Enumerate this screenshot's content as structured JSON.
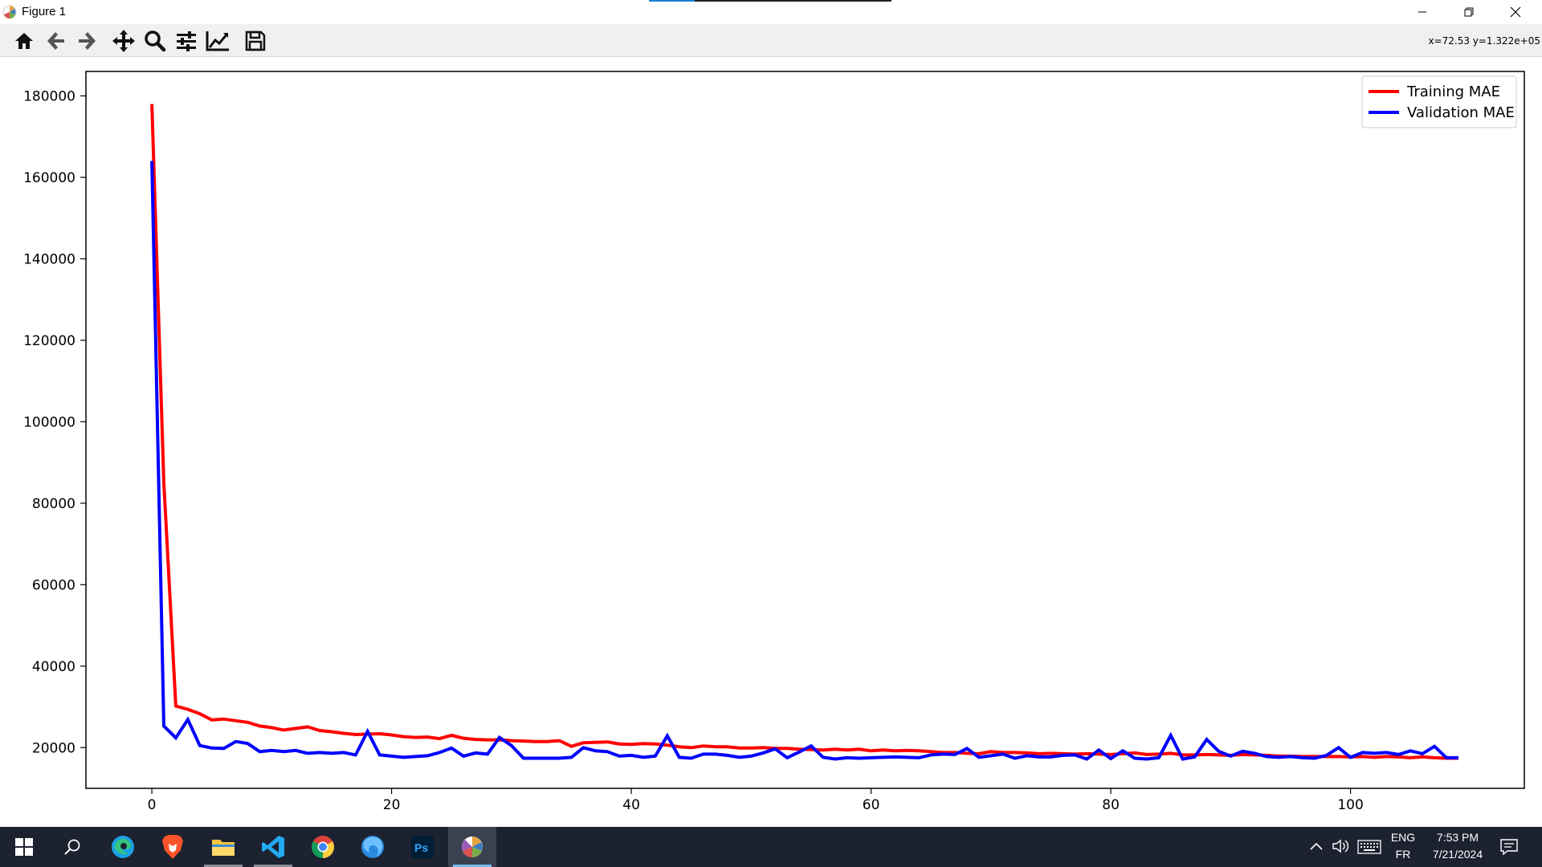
{
  "window": {
    "title": "Figure 1",
    "controls": {
      "minimize_icon": "minimize-icon",
      "restore_icon": "restore-icon",
      "close_icon": "close-icon"
    },
    "top_progress_fraction": 0.19
  },
  "toolbar": {
    "buttons": [
      {
        "name": "home-button",
        "icon": "home-icon"
      },
      {
        "name": "back-button",
        "icon": "arrow-left-icon"
      },
      {
        "name": "forward-button",
        "icon": "arrow-right-icon"
      },
      {
        "name": "pan-button",
        "icon": "move-icon"
      },
      {
        "name": "zoom-button",
        "icon": "magnifier-icon"
      },
      {
        "name": "configure-subplots-button",
        "icon": "sliders-icon"
      },
      {
        "name": "edit-axis-button",
        "icon": "line-chart-icon"
      },
      {
        "name": "save-button",
        "icon": "floppy-disk-icon"
      }
    ],
    "coordinate_readout": "x=72.53 y=1.322e+05"
  },
  "chart_data": {
    "type": "line",
    "title": "",
    "xlabel": "",
    "ylabel": "",
    "xlim": [
      -5.5,
      114.5
    ],
    "ylim": [
      10000,
      186000
    ],
    "xticks": [
      0,
      20,
      40,
      60,
      80,
      100
    ],
    "xtick_labels": [
      "0",
      "20",
      "40",
      "60",
      "80",
      "100"
    ],
    "yticks": [
      20000,
      40000,
      60000,
      80000,
      100000,
      120000,
      140000,
      160000,
      180000
    ],
    "ytick_labels": [
      "20000",
      "40000",
      "60000",
      "80000",
      "100000",
      "120000",
      "140000",
      "160000",
      "180000"
    ],
    "grid": false,
    "legend_position": "top-right",
    "x": [
      0,
      1,
      2,
      3,
      4,
      5,
      6,
      7,
      8,
      9,
      10,
      11,
      12,
      13,
      14,
      15,
      16,
      17,
      18,
      19,
      20,
      21,
      22,
      23,
      24,
      25,
      26,
      27,
      28,
      29,
      30,
      31,
      32,
      33,
      34,
      35,
      36,
      37,
      38,
      39,
      40,
      41,
      42,
      43,
      44,
      45,
      46,
      47,
      48,
      49,
      50,
      51,
      52,
      53,
      54,
      55,
      56,
      57,
      58,
      59,
      60,
      61,
      62,
      63,
      64,
      65,
      66,
      67,
      68,
      69,
      70,
      71,
      72,
      73,
      74,
      75,
      76,
      77,
      78,
      79,
      80,
      81,
      82,
      83,
      84,
      85,
      86,
      87,
      88,
      89,
      90,
      91,
      92,
      93,
      94,
      95,
      96,
      97,
      98,
      99,
      100,
      101,
      102,
      103,
      104,
      105,
      106,
      107,
      108,
      109
    ],
    "series": [
      {
        "name": "Training MAE",
        "color": "#ff0000",
        "values": [
          178000,
          85000,
          30200,
          29400,
          28300,
          26800,
          27000,
          26600,
          26200,
          25300,
          24900,
          24300,
          24700,
          25100,
          24200,
          23900,
          23500,
          23200,
          23300,
          23400,
          23100,
          22700,
          22500,
          22600,
          22200,
          23000,
          22300,
          22000,
          21900,
          21900,
          21700,
          21600,
          21500,
          21500,
          21700,
          20300,
          21200,
          21300,
          21400,
          20900,
          20800,
          21000,
          20900,
          20600,
          20200,
          20000,
          20400,
          20200,
          20200,
          19900,
          19900,
          20000,
          19800,
          19800,
          19600,
          19500,
          19400,
          19600,
          19400,
          19600,
          19200,
          19400,
          19200,
          19300,
          19200,
          19000,
          18800,
          18800,
          18600,
          18500,
          19000,
          18800,
          18800,
          18700,
          18500,
          18600,
          18500,
          18400,
          18500,
          18400,
          18300,
          18500,
          18700,
          18300,
          18400,
          18600,
          18200,
          18200,
          18300,
          18200,
          18100,
          18300,
          18200,
          18100,
          17900,
          17900,
          17800,
          17800,
          17800,
          17800,
          17700,
          17800,
          17600,
          17800,
          17700,
          17500,
          17700,
          17500,
          17400,
          17400
        ],
        "linewidth": 4
      },
      {
        "name": "Validation MAE",
        "color": "#0000ff",
        "values": [
          164000,
          25300,
          22400,
          26900,
          20500,
          19900,
          19800,
          21500,
          21000,
          19000,
          19300,
          19000,
          19300,
          18600,
          18800,
          18600,
          18800,
          18200,
          24000,
          18200,
          17900,
          17600,
          17800,
          18000,
          18800,
          19900,
          17900,
          18700,
          18400,
          22500,
          20500,
          17400,
          17400,
          17400,
          17400,
          17600,
          20000,
          19200,
          19000,
          17900,
          18100,
          17600,
          17900,
          22900,
          17600,
          17400,
          18400,
          18400,
          18100,
          17600,
          17900,
          18700,
          19700,
          17500,
          18900,
          20400,
          17600,
          17200,
          17500,
          17400,
          17500,
          17600,
          17700,
          17600,
          17500,
          18200,
          18400,
          18300,
          19800,
          17600,
          18000,
          18400,
          17400,
          18000,
          17700,
          17700,
          18100,
          18200,
          17200,
          19400,
          17300,
          19200,
          17400,
          17200,
          17500,
          23000,
          17200,
          17700,
          22000,
          19100,
          17900,
          19100,
          18600,
          17800,
          17600,
          17800,
          17500,
          17400,
          18100,
          20000,
          17600,
          18800,
          18600,
          18800,
          18300,
          19200,
          18500,
          20300,
          17500,
          17500
        ],
        "linewidth": 4
      }
    ]
  },
  "taskbar": {
    "apps": [
      {
        "name": "start-button",
        "icon": "windows-logo-icon"
      },
      {
        "name": "search-button",
        "icon": "search-icon"
      },
      {
        "name": "edge-app",
        "icon": "edge-icon"
      },
      {
        "name": "brave-app",
        "icon": "brave-lion-icon"
      },
      {
        "name": "file-explorer-app",
        "icon": "folder-icon"
      },
      {
        "name": "vscode-app",
        "icon": "vscode-icon"
      },
      {
        "name": "chrome-app",
        "icon": "chrome-icon"
      },
      {
        "name": "firefox-app",
        "icon": "firefox-icon"
      },
      {
        "name": "photoshop-app",
        "icon": "photoshop-icon"
      },
      {
        "name": "python-figure-app",
        "icon": "matplotlib-icon"
      }
    ],
    "tray": {
      "language_top": "ENG",
      "language_bottom": "FR",
      "time": "7:53 PM",
      "date": "7/21/2024",
      "icons": [
        "chevron-up-icon",
        "speaker-icon",
        "keyboard-icon",
        "notification-icon"
      ]
    }
  },
  "colors": {
    "taskbar_bg": "#1c2230",
    "toolbar_bg": "#f0f0f0",
    "training": "#ff0000",
    "validation": "#0000ff"
  }
}
